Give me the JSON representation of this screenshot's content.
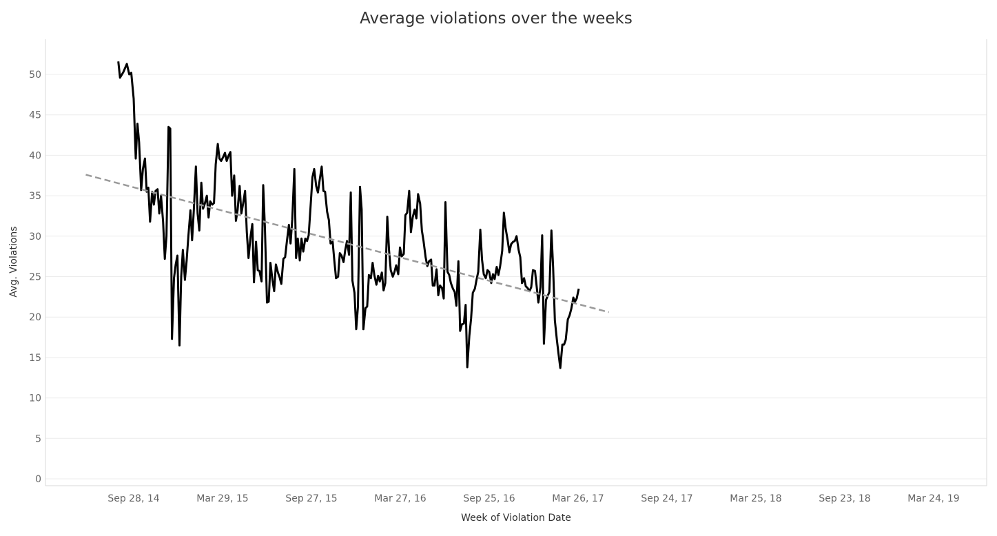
{
  "chart_data": {
    "type": "line",
    "title": "Average violations over the weeks",
    "xlabel": "Week of Violation Date",
    "ylabel": "Avg. Violations",
    "x_tick_labels": [
      "Sep 28, 14",
      "Mar 29, 15",
      "Sep 27, 15",
      "Mar 27, 16",
      "Sep 25, 16",
      "Mar 26, 17",
      "Sep 24, 17",
      "Mar 25, 18",
      "Sep 23, 18",
      "Mar 24, 19"
    ],
    "y_ticks": [
      0,
      5,
      10,
      15,
      20,
      25,
      30,
      35,
      40,
      45,
      50
    ],
    "ylim": [
      0,
      53
    ],
    "grid": "horizontal",
    "x_unit": "weeks relative to Sep 28, 14",
    "series": [
      {
        "values": [
          [
            -4.5,
            51.6
          ],
          [
            -4,
            49.6
          ],
          [
            -3,
            50.3
          ],
          [
            -2,
            51.3
          ],
          [
            -1.3,
            50.0
          ],
          [
            -0.7,
            50.2
          ],
          [
            0,
            47.0
          ],
          [
            0.6,
            39.6
          ],
          [
            1.1,
            43.9
          ],
          [
            1.6,
            41.6
          ],
          [
            2.2,
            35.7
          ],
          [
            2.7,
            38.3
          ],
          [
            3.3,
            39.6
          ],
          [
            3.8,
            35.5
          ],
          [
            4.3,
            36.0
          ],
          [
            4.8,
            31.8
          ],
          [
            5.4,
            35.5
          ],
          [
            5.9,
            33.9
          ],
          [
            6.4,
            35.6
          ],
          [
            7.0,
            35.8
          ],
          [
            7.5,
            32.8
          ],
          [
            8.0,
            35.0
          ],
          [
            8.6,
            31.8
          ],
          [
            9.1,
            27.2
          ],
          [
            9.6,
            30.0
          ],
          [
            10.2,
            43.5
          ],
          [
            10.7,
            43.3
          ],
          [
            11.2,
            17.3
          ],
          [
            11.8,
            24.8
          ],
          [
            12.3,
            26.5
          ],
          [
            12.8,
            27.6
          ],
          [
            13.4,
            16.5
          ],
          [
            13.9,
            25.0
          ],
          [
            14.4,
            28.3
          ],
          [
            15.0,
            24.6
          ],
          [
            15.5,
            27.0
          ],
          [
            16.0,
            30.0
          ],
          [
            16.6,
            33.2
          ],
          [
            17.1,
            29.5
          ],
          [
            17.6,
            33.2
          ],
          [
            18.2,
            38.6
          ],
          [
            18.7,
            32.8
          ],
          [
            19.2,
            30.7
          ],
          [
            19.8,
            36.6
          ],
          [
            20.3,
            33.4
          ],
          [
            20.8,
            34.0
          ],
          [
            21.4,
            35.0
          ],
          [
            21.9,
            32.3
          ],
          [
            22.4,
            34.3
          ],
          [
            23.0,
            33.9
          ],
          [
            23.5,
            34.1
          ],
          [
            24.0,
            38.9
          ],
          [
            24.6,
            41.4
          ],
          [
            25.1,
            39.6
          ],
          [
            25.6,
            39.3
          ],
          [
            26.2,
            39.8
          ],
          [
            26.7,
            40.3
          ],
          [
            27.2,
            39.3
          ],
          [
            27.8,
            40.0
          ],
          [
            28.3,
            40.4
          ],
          [
            28.8,
            35.0
          ],
          [
            29.4,
            37.5
          ],
          [
            29.9,
            31.9
          ],
          [
            30.4,
            33.2
          ],
          [
            31.0,
            36.2
          ],
          [
            31.5,
            32.8
          ],
          [
            32.0,
            34.0
          ],
          [
            32.6,
            35.6
          ],
          [
            33.1,
            30.5
          ],
          [
            33.6,
            27.3
          ],
          [
            34.2,
            30.0
          ],
          [
            34.7,
            31.5
          ],
          [
            35.2,
            24.3
          ],
          [
            35.8,
            29.3
          ],
          [
            36.3,
            25.8
          ],
          [
            36.8,
            25.7
          ],
          [
            37.4,
            24.4
          ],
          [
            37.9,
            36.3
          ],
          [
            38.4,
            31.0
          ],
          [
            39.0,
            21.8
          ],
          [
            39.5,
            21.9
          ],
          [
            40.0,
            26.7
          ],
          [
            40.6,
            24.6
          ],
          [
            41.1,
            23.2
          ],
          [
            41.6,
            26.5
          ],
          [
            42.2,
            25.5
          ],
          [
            42.7,
            24.9
          ],
          [
            43.2,
            24.1
          ],
          [
            43.8,
            27.2
          ],
          [
            44.3,
            27.4
          ],
          [
            44.8,
            29.3
          ],
          [
            45.4,
            31.4
          ],
          [
            45.9,
            29.1
          ],
          [
            46.4,
            32.1
          ],
          [
            47.0,
            38.3
          ],
          [
            47.5,
            27.3
          ],
          [
            48.0,
            29.7
          ],
          [
            48.6,
            27.0
          ],
          [
            49.1,
            29.7
          ],
          [
            49.6,
            28.1
          ],
          [
            50.2,
            29.7
          ],
          [
            50.7,
            29.4
          ],
          [
            51.2,
            30.1
          ],
          [
            51.8,
            34.0
          ],
          [
            52.3,
            37.3
          ],
          [
            52.8,
            38.3
          ],
          [
            53.4,
            36.2
          ],
          [
            53.9,
            35.4
          ],
          [
            54.4,
            36.9
          ],
          [
            55.0,
            38.6
          ],
          [
            55.5,
            35.6
          ],
          [
            56.0,
            35.5
          ],
          [
            56.6,
            33.0
          ],
          [
            57.1,
            32.0
          ],
          [
            57.6,
            29.1
          ],
          [
            58.2,
            29.3
          ],
          [
            58.7,
            27.0
          ],
          [
            59.2,
            24.8
          ],
          [
            59.8,
            25.0
          ],
          [
            60.3,
            27.9
          ],
          [
            60.8,
            27.6
          ],
          [
            61.4,
            26.8
          ],
          [
            61.9,
            28.3
          ],
          [
            62.4,
            29.4
          ],
          [
            63.0,
            27.7
          ],
          [
            63.5,
            35.4
          ],
          [
            64.0,
            24.5
          ],
          [
            64.6,
            23.0
          ],
          [
            65.1,
            18.5
          ],
          [
            65.6,
            21.3
          ],
          [
            66.2,
            36.1
          ],
          [
            66.7,
            33.3
          ],
          [
            67.2,
            18.5
          ],
          [
            67.8,
            21.1
          ],
          [
            68.3,
            21.3
          ],
          [
            68.8,
            25.2
          ],
          [
            69.4,
            24.8
          ],
          [
            69.9,
            26.7
          ],
          [
            70.4,
            25.2
          ],
          [
            71.0,
            24.0
          ],
          [
            71.5,
            25.1
          ],
          [
            72.0,
            24.4
          ],
          [
            72.6,
            25.5
          ],
          [
            73.1,
            23.3
          ],
          [
            73.6,
            24.2
          ],
          [
            74.2,
            32.4
          ],
          [
            74.7,
            28.3
          ],
          [
            75.2,
            25.8
          ],
          [
            75.8,
            25.0
          ],
          [
            76.3,
            25.6
          ],
          [
            76.8,
            26.4
          ],
          [
            77.4,
            25.3
          ],
          [
            77.9,
            28.6
          ],
          [
            78.4,
            27.5
          ],
          [
            79.0,
            27.8
          ],
          [
            79.5,
            32.6
          ],
          [
            80.0,
            32.9
          ],
          [
            80.6,
            35.6
          ],
          [
            81.1,
            30.5
          ],
          [
            81.6,
            32.3
          ],
          [
            82.2,
            33.3
          ],
          [
            82.7,
            32.2
          ],
          [
            83.2,
            35.2
          ],
          [
            83.8,
            34.0
          ],
          [
            84.3,
            30.7
          ],
          [
            84.8,
            29.4
          ],
          [
            85.4,
            27.4
          ],
          [
            85.9,
            26.3
          ],
          [
            86.4,
            26.9
          ],
          [
            87.0,
            27.1
          ],
          [
            87.5,
            23.9
          ],
          [
            88.0,
            23.9
          ],
          [
            88.6,
            25.9
          ],
          [
            89.1,
            22.7
          ],
          [
            89.6,
            23.9
          ],
          [
            90.2,
            23.6
          ],
          [
            90.7,
            22.3
          ],
          [
            91.2,
            34.2
          ],
          [
            91.8,
            25.6
          ],
          [
            92.3,
            25.2
          ],
          [
            92.8,
            24.2
          ],
          [
            93.4,
            23.5
          ],
          [
            93.9,
            23.1
          ],
          [
            94.4,
            21.4
          ],
          [
            95.0,
            26.9
          ],
          [
            95.5,
            18.3
          ],
          [
            96.0,
            19.1
          ],
          [
            96.6,
            19.2
          ],
          [
            97.1,
            21.5
          ],
          [
            97.6,
            13.8
          ],
          [
            98.2,
            17.7
          ],
          [
            98.7,
            19.8
          ],
          [
            99.2,
            23.0
          ],
          [
            99.8,
            23.5
          ],
          [
            100.3,
            24.6
          ],
          [
            100.8,
            25.6
          ],
          [
            101.4,
            30.8
          ],
          [
            101.9,
            27.1
          ],
          [
            102.4,
            25.3
          ],
          [
            103.0,
            24.8
          ],
          [
            103.5,
            25.8
          ],
          [
            104.0,
            25.6
          ],
          [
            104.6,
            24.2
          ],
          [
            105.1,
            25.3
          ],
          [
            105.6,
            24.7
          ],
          [
            106.2,
            26.2
          ],
          [
            106.7,
            25.2
          ],
          [
            107.2,
            26.3
          ],
          [
            107.8,
            28.2
          ],
          [
            108.3,
            32.9
          ],
          [
            108.8,
            31.0
          ],
          [
            109.4,
            29.5
          ],
          [
            109.9,
            28.0
          ],
          [
            110.4,
            29.0
          ],
          [
            111.0,
            29.3
          ],
          [
            111.5,
            29.4
          ],
          [
            112.0,
            30.0
          ],
          [
            112.6,
            28.3
          ],
          [
            113.1,
            27.4
          ],
          [
            113.6,
            24.2
          ],
          [
            114.2,
            24.8
          ],
          [
            114.7,
            23.8
          ],
          [
            115.2,
            23.6
          ],
          [
            115.8,
            23.2
          ],
          [
            116.3,
            23.7
          ],
          [
            116.8,
            25.8
          ],
          [
            117.4,
            25.7
          ],
          [
            117.9,
            23.7
          ],
          [
            118.4,
            21.8
          ],
          [
            119.0,
            23.7
          ],
          [
            119.5,
            30.1
          ],
          [
            120.0,
            16.7
          ],
          [
            120.6,
            22.1
          ],
          [
            121.1,
            22.6
          ],
          [
            121.6,
            23.1
          ],
          [
            122.2,
            30.7
          ],
          [
            122.7,
            26.1
          ],
          [
            123.2,
            19.6
          ],
          [
            123.8,
            17.2
          ],
          [
            124.3,
            15.4
          ],
          [
            124.8,
            13.7
          ],
          [
            125.4,
            16.6
          ],
          [
            125.9,
            16.6
          ],
          [
            126.4,
            17.2
          ],
          [
            127.0,
            19.7
          ],
          [
            127.5,
            20.2
          ],
          [
            128.0,
            21.0
          ],
          [
            128.6,
            22.4
          ],
          [
            129.1,
            21.9
          ],
          [
            129.6,
            22.3
          ],
          [
            130.2,
            23.5
          ]
        ]
      },
      {
        "style": "trend",
        "values": [
          [
            -14,
            37.6
          ],
          [
            139,
            20.6
          ]
        ]
      }
    ]
  }
}
